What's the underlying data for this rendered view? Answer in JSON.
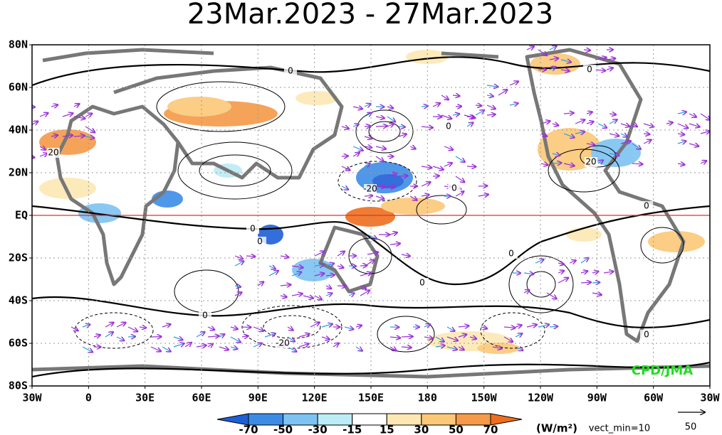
{
  "title": "23Mar.2023 - 27Mar.2023",
  "map": {
    "lat_labels": [
      "80N",
      "60N",
      "40N",
      "20N",
      "EQ",
      "20S",
      "40S",
      "60S",
      "80S"
    ],
    "lon_labels": [
      "30W",
      "0",
      "30E",
      "60E",
      "90E",
      "120E",
      "150E",
      "180",
      "150W",
      "120W",
      "90W",
      "60W",
      "30W"
    ],
    "contour_labels": [
      "0",
      "0",
      "0",
      "20",
      "-20",
      "0",
      "0",
      "0",
      "0",
      "0",
      "0",
      "0",
      "-20",
      "0",
      "20"
    ],
    "credit": "CPD/JMA"
  },
  "colorbar": {
    "levels": [
      -70,
      -50,
      -30,
      -15,
      15,
      30,
      50,
      70
    ],
    "colors": [
      "#1e5fd8",
      "#3c8ce6",
      "#7cc3f2",
      "#bcecf6",
      "#ffffff",
      "#fde8b4",
      "#fbc878",
      "#f59a48",
      "#ef6e1e"
    ],
    "unit": "(W/m²)",
    "note": "vect_min=10"
  },
  "vector_scale": {
    "label": "50"
  }
}
